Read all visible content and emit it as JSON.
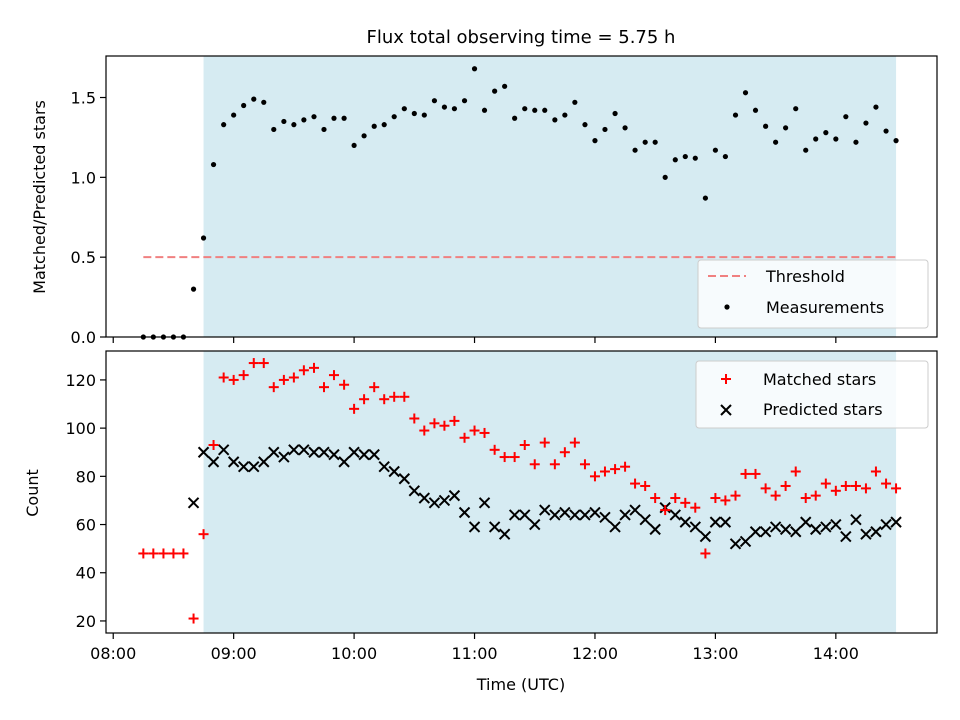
{
  "chart_data": [
    {
      "type": "scatter",
      "title": "Flux total observing time = 5.75 h",
      "xlabel": "",
      "ylabel": "Matched/Predicted stars",
      "ylim": [
        0,
        1.76
      ],
      "yticks": [
        0.0,
        0.5,
        1.0,
        1.5
      ],
      "ytick_labels": [
        "0.0",
        "0.5",
        "1.0",
        "1.5"
      ],
      "xlim_hours": [
        7.94,
        14.84
      ],
      "xticks_hours": [
        8,
        9,
        10,
        11,
        12,
        13,
        14
      ],
      "shaded_span_hours": [
        8.75,
        14.5
      ],
      "shade_color": "#add8e6",
      "grid": false,
      "legend_position": "lower right",
      "legend": [
        "Threshold",
        "Measurements"
      ],
      "threshold": {
        "name": "Threshold",
        "value": 0.5,
        "x_range_hours": [
          8.25,
          14.5
        ],
        "color": "#f08080"
      },
      "series": [
        {
          "name": "Measurements",
          "color": "#000000",
          "x_hours": [
            8.25,
            8.333,
            8.417,
            8.5,
            8.583,
            8.667,
            8.75,
            8.833,
            8.917,
            9.0,
            9.083,
            9.167,
            9.25,
            9.333,
            9.417,
            9.5,
            9.583,
            9.667,
            9.75,
            9.833,
            9.917,
            10.0,
            10.083,
            10.167,
            10.25,
            10.333,
            10.417,
            10.5,
            10.583,
            10.667,
            10.75,
            10.833,
            10.917,
            11.0,
            11.083,
            11.167,
            11.25,
            11.333,
            11.417,
            11.5,
            11.583,
            11.667,
            11.75,
            11.833,
            11.917,
            12.0,
            12.083,
            12.167,
            12.25,
            12.333,
            12.417,
            12.5,
            12.583,
            12.667,
            12.75,
            12.833,
            12.917,
            13.0,
            13.083,
            13.167,
            13.25,
            13.333,
            13.417,
            13.5,
            13.583,
            13.667,
            13.75,
            13.833,
            13.917,
            14.0,
            14.083,
            14.167,
            14.25,
            14.333,
            14.417,
            14.5
          ],
          "y": [
            0.0,
            0.0,
            0.0,
            0.0,
            0.0,
            0.3,
            0.62,
            1.08,
            1.33,
            1.39,
            1.45,
            1.49,
            1.47,
            1.3,
            1.35,
            1.33,
            1.36,
            1.38,
            1.3,
            1.37,
            1.37,
            1.2,
            1.26,
            1.32,
            1.33,
            1.38,
            1.43,
            1.4,
            1.39,
            1.48,
            1.44,
            1.43,
            1.48,
            1.68,
            1.42,
            1.54,
            1.57,
            1.37,
            1.43,
            1.42,
            1.42,
            1.36,
            1.39,
            1.47,
            1.33,
            1.23,
            1.3,
            1.4,
            1.31,
            1.17,
            1.22,
            1.22,
            1.0,
            1.11,
            1.13,
            1.12,
            0.87,
            1.17,
            1.13,
            1.39,
            1.53,
            1.42,
            1.32,
            1.22,
            1.31,
            1.43,
            1.17,
            1.24,
            1.28,
            1.24,
            1.38,
            1.22,
            1.34,
            1.44,
            1.29,
            1.23
          ]
        }
      ]
    },
    {
      "type": "scatter",
      "title": "",
      "xlabel": "Time (UTC)",
      "ylabel": "Count",
      "ylim": [
        15,
        132
      ],
      "yticks": [
        20,
        40,
        60,
        80,
        100,
        120
      ],
      "ytick_labels": [
        "20",
        "40",
        "60",
        "80",
        "100",
        "120"
      ],
      "xlim_hours": [
        7.94,
        14.84
      ],
      "xticks_hours": [
        8,
        9,
        10,
        11,
        12,
        13,
        14
      ],
      "xtick_labels": [
        "08:00",
        "09:00",
        "10:00",
        "11:00",
        "12:00",
        "13:00",
        "14:00"
      ],
      "shaded_span_hours": [
        8.75,
        14.5
      ],
      "shade_color": "#add8e6",
      "grid": false,
      "legend_position": "upper right",
      "legend": [
        "Matched stars",
        "Predicted stars"
      ],
      "series": [
        {
          "name": "Matched stars",
          "marker": "+",
          "color": "#ff0000",
          "x_hours": [
            8.25,
            8.333,
            8.417,
            8.5,
            8.583,
            8.667,
            8.75,
            8.833,
            8.917,
            9.0,
            9.083,
            9.167,
            9.25,
            9.333,
            9.417,
            9.5,
            9.583,
            9.667,
            9.75,
            9.833,
            9.917,
            10.0,
            10.083,
            10.167,
            10.25,
            10.333,
            10.417,
            10.5,
            10.583,
            10.667,
            10.75,
            10.833,
            10.917,
            11.0,
            11.083,
            11.167,
            11.25,
            11.333,
            11.417,
            11.5,
            11.583,
            11.667,
            11.75,
            11.833,
            11.917,
            12.0,
            12.083,
            12.167,
            12.25,
            12.333,
            12.417,
            12.5,
            12.583,
            12.667,
            12.75,
            12.833,
            12.917,
            13.0,
            13.083,
            13.167,
            13.25,
            13.333,
            13.417,
            13.5,
            13.583,
            13.667,
            13.75,
            13.833,
            13.917,
            14.0,
            14.083,
            14.167,
            14.25,
            14.333,
            14.417,
            14.5
          ],
          "y": [
            48,
            48,
            48,
            48,
            48,
            21,
            56,
            93,
            121,
            120,
            122,
            127,
            127,
            117,
            120,
            121,
            124,
            125,
            117,
            122,
            118,
            108,
            112,
            117,
            112,
            113,
            113,
            104,
            99,
            102,
            101,
            103,
            96,
            99,
            98,
            91,
            88,
            88,
            93,
            85,
            94,
            85,
            90,
            94,
            85,
            80,
            82,
            83,
            84,
            77,
            76,
            71,
            66,
            71,
            69,
            67,
            48,
            71,
            70,
            72,
            81,
            81,
            75,
            72,
            76,
            82,
            71,
            72,
            77,
            74,
            76,
            76,
            75,
            82,
            77,
            75
          ]
        },
        {
          "name": "Predicted stars",
          "marker": "x",
          "color": "#000000",
          "x_hours": [
            8.667,
            8.75,
            8.833,
            8.917,
            9.0,
            9.083,
            9.167,
            9.25,
            9.333,
            9.417,
            9.5,
            9.583,
            9.667,
            9.75,
            9.833,
            9.917,
            10.0,
            10.083,
            10.167,
            10.25,
            10.333,
            10.417,
            10.5,
            10.583,
            10.667,
            10.75,
            10.833,
            10.917,
            11.0,
            11.083,
            11.167,
            11.25,
            11.333,
            11.417,
            11.5,
            11.583,
            11.667,
            11.75,
            11.833,
            11.917,
            12.0,
            12.083,
            12.167,
            12.25,
            12.333,
            12.417,
            12.5,
            12.583,
            12.667,
            12.75,
            12.833,
            12.917,
            13.0,
            13.083,
            13.167,
            13.25,
            13.333,
            13.417,
            13.5,
            13.583,
            13.667,
            13.75,
            13.833,
            13.917,
            14.0,
            14.083,
            14.167,
            14.25,
            14.333,
            14.417,
            14.5
          ],
          "y": [
            69,
            90,
            86,
            91,
            86,
            84,
            84,
            86,
            90,
            88,
            91,
            91,
            90,
            90,
            89,
            86,
            90,
            89,
            89,
            84,
            82,
            79,
            74,
            71,
            69,
            70,
            72,
            65,
            59,
            69,
            59,
            56,
            64,
            64,
            60,
            66,
            64,
            65,
            64,
            64,
            65,
            63,
            59,
            64,
            66,
            62,
            58,
            67,
            64,
            61,
            59,
            55,
            61,
            61,
            52,
            53,
            57,
            57,
            59,
            58,
            57,
            61,
            58,
            59,
            60,
            55,
            62,
            56,
            57,
            60,
            61
          ]
        }
      ]
    }
  ]
}
